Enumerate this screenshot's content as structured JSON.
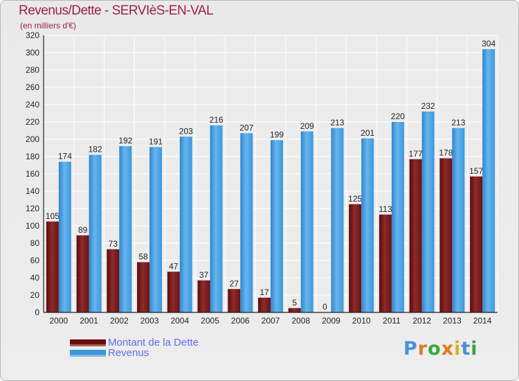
{
  "header": {
    "title": "Revenus/Dette - SERVIèS-EN-VAL",
    "subtitle": "(en milliers d'€)"
  },
  "chart_data": {
    "type": "bar",
    "title": "Revenus/Dette - SERVIèS-EN-VAL",
    "subtitle": "(en milliers d'€)",
    "xlabel": "",
    "ylabel": "",
    "categories": [
      "2000",
      "2001",
      "2002",
      "2003",
      "2004",
      "2005",
      "2006",
      "2007",
      "2008",
      "2009",
      "2010",
      "2011",
      "2012",
      "2013",
      "2014"
    ],
    "series": [
      {
        "name": "Montant de la Dette",
        "color": "#6b0d0d",
        "values": [
          105,
          89,
          73,
          58,
          47,
          37,
          27,
          17,
          5,
          0,
          125,
          113,
          177,
          178,
          157
        ]
      },
      {
        "name": "Revenus",
        "color": "#3b96dc",
        "values": [
          174,
          182,
          192,
          191,
          203,
          216,
          207,
          199,
          209,
          213,
          201,
          220,
          232,
          213,
          304
        ]
      }
    ],
    "ylim": [
      0,
      320
    ],
    "yticks": [
      0,
      20,
      40,
      60,
      80,
      100,
      120,
      140,
      160,
      180,
      200,
      220,
      240,
      260,
      280,
      300,
      320
    ],
    "grid": true,
    "legend_position": "bottom-left"
  },
  "legend": {
    "items": [
      {
        "label": "Montant de la Dette",
        "color": "#6b0d0d"
      },
      {
        "label": "Revenus",
        "color": "#3b96dc"
      }
    ]
  },
  "logo": {
    "text": "Proxiti",
    "letters": [
      "P",
      "r",
      "o",
      "x",
      "i",
      "t",
      "i"
    ],
    "colors": [
      "#4a8fd8",
      "#e07a1c",
      "#3aa63a",
      "#e07a1c",
      "#d8b21c",
      "#4a8fd8",
      "#3aa63a"
    ]
  }
}
